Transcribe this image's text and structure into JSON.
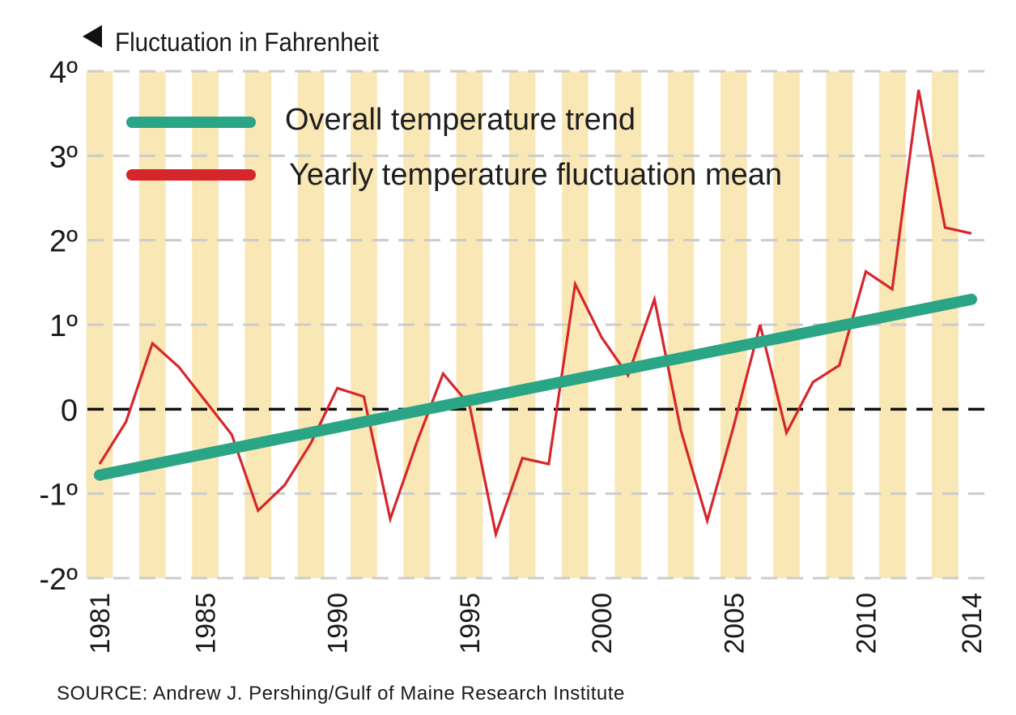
{
  "chart_data": {
    "type": "line",
    "ylabel": "Fluctuation in Fahrenheit",
    "y_tick_labels": [
      "4º",
      "3º",
      "2º",
      "1º",
      "0",
      "-1º",
      "-2º"
    ],
    "y_tick_values": [
      4,
      3,
      2,
      1,
      0,
      -1,
      -2
    ],
    "x_tick_labels": [
      "1981",
      "1985",
      "1990",
      "1995",
      "2000",
      "2005",
      "2010",
      "2014"
    ],
    "x_tick_values": [
      1981,
      1985,
      1990,
      1995,
      2000,
      2005,
      2010,
      2014
    ],
    "xlim": [
      1981,
      2014
    ],
    "ylim": [
      -2,
      4
    ],
    "zero_line": "dashed",
    "background": "alternating yearly stripes",
    "stripe_color": "#f9e7b5",
    "grid_color": "#cccccc",
    "legend": {
      "placement": "top-left",
      "entries": [
        {
          "label": "Overall temperature trend",
          "color": "#2aa586"
        },
        {
          "label": "Yearly temperature fluctuation mean",
          "color": "#d6262c"
        }
      ]
    },
    "series": [
      {
        "name": "Yearly temperature fluctuation mean",
        "color": "#d6262c",
        "x": [
          1981,
          1982,
          1983,
          1984,
          1985,
          1986,
          1987,
          1988,
          1989,
          1990,
          1991,
          1992,
          1993,
          1994,
          1995,
          1996,
          1997,
          1998,
          1999,
          2000,
          2001,
          2002,
          2003,
          2004,
          2005,
          2006,
          2007,
          2008,
          2009,
          2010,
          2011,
          2012,
          2013,
          2014
        ],
        "y": [
          -0.65,
          -0.15,
          0.78,
          0.5,
          0.1,
          -0.3,
          -1.2,
          -0.9,
          -0.4,
          0.25,
          0.15,
          -1.3,
          -0.4,
          0.42,
          0.05,
          -1.48,
          -0.58,
          -0.65,
          1.48,
          0.85,
          0.4,
          1.3,
          -0.25,
          -1.32,
          -0.2,
          1.0,
          -0.28,
          0.32,
          0.52,
          1.63,
          1.42,
          3.78,
          2.15,
          2.08
        ]
      },
      {
        "name": "Overall temperature trend",
        "color": "#2aa586",
        "x": [
          1981,
          2014
        ],
        "y": [
          -0.78,
          1.3
        ]
      }
    ]
  },
  "source_note": "SOURCE: Andrew J. Pershing/Gulf of Maine Research Institute"
}
